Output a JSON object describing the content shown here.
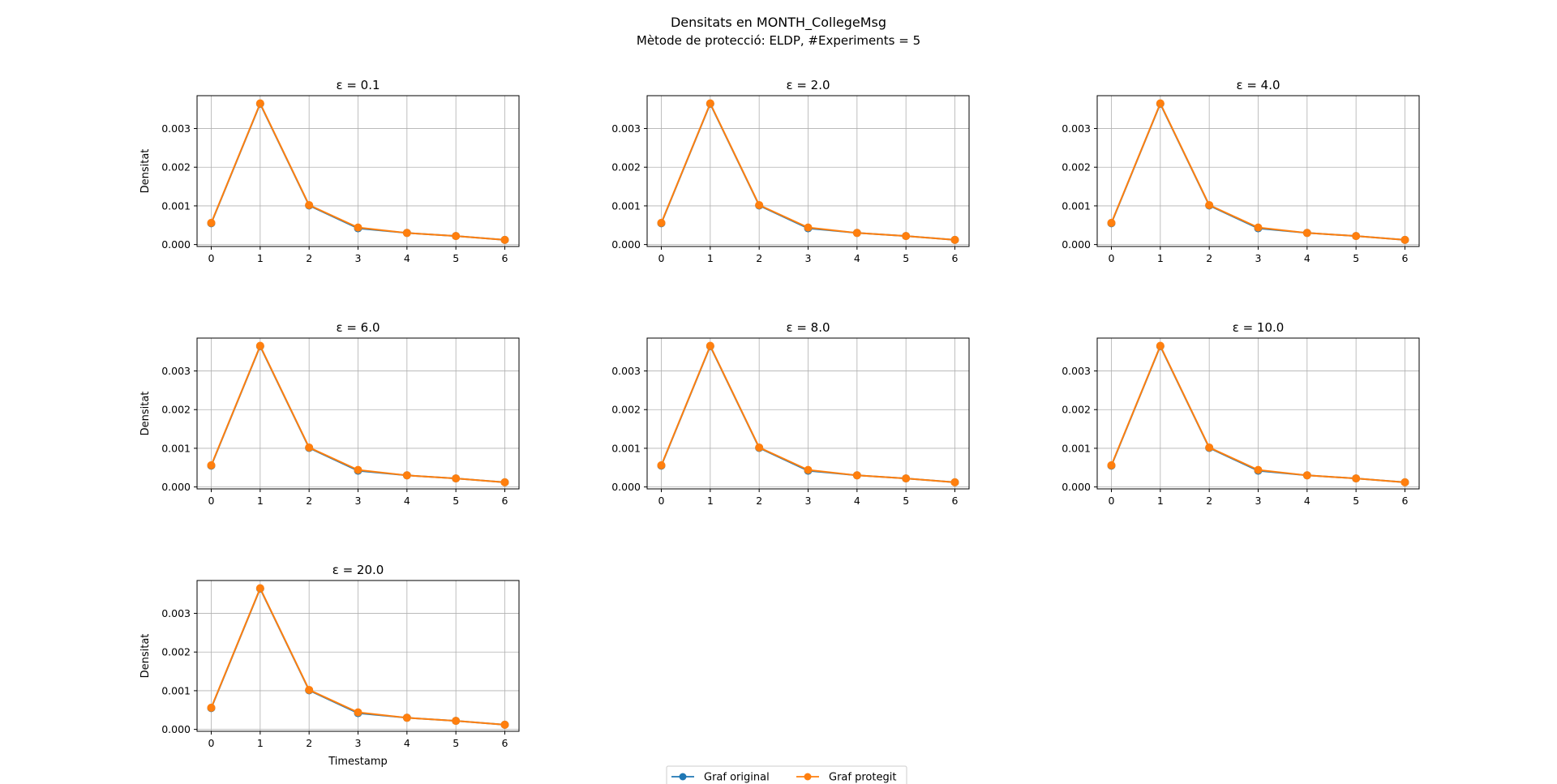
{
  "title": "Densitats en MONTH_CollegeMsg",
  "subtitle": "Mètode de protecció: ELDP, #Experiments = 5",
  "legend": {
    "placement": "bottom-center",
    "entries": [
      {
        "label": "Graf original",
        "color": "#1f77b4"
      },
      {
        "label": "Graf protegit",
        "color": "#ff7f0e"
      }
    ]
  },
  "chart_data": [
    {
      "type": "line",
      "title": "ε = 0.1",
      "ylabel": "Densitat",
      "xlabel": "",
      "x": [
        0,
        1,
        2,
        3,
        4,
        5,
        6
      ],
      "xticks": [
        "0",
        "1",
        "2",
        "3",
        "4",
        "5",
        "6"
      ],
      "yticks": [
        "0.000",
        "0.001",
        "0.002",
        "0.003"
      ],
      "ylim": [
        -5e-05,
        0.00385
      ],
      "grid": true,
      "series": [
        {
          "name": "Graf original",
          "color": "#1f77b4",
          "values": [
            0.00055,
            0.00364,
            0.00101,
            0.00042,
            0.0003,
            0.00022,
            0.00012
          ]
        },
        {
          "name": "Graf protegit",
          "color": "#ff7f0e",
          "values": [
            0.00056,
            0.00365,
            0.00102,
            0.00044,
            0.0003,
            0.00022,
            0.00012
          ]
        }
      ]
    },
    {
      "type": "line",
      "title": "ε = 2.0",
      "ylabel": "",
      "xlabel": "",
      "x": [
        0,
        1,
        2,
        3,
        4,
        5,
        6
      ],
      "xticks": [
        "0",
        "1",
        "2",
        "3",
        "4",
        "5",
        "6"
      ],
      "yticks": [
        "0.000",
        "0.001",
        "0.002",
        "0.003"
      ],
      "ylim": [
        -5e-05,
        0.00385
      ],
      "grid": true,
      "series": [
        {
          "name": "Graf original",
          "color": "#1f77b4",
          "values": [
            0.00055,
            0.00364,
            0.00101,
            0.00042,
            0.0003,
            0.00022,
            0.00012
          ]
        },
        {
          "name": "Graf protegit",
          "color": "#ff7f0e",
          "values": [
            0.00056,
            0.00365,
            0.00102,
            0.00044,
            0.0003,
            0.00022,
            0.00012
          ]
        }
      ]
    },
    {
      "type": "line",
      "title": "ε = 4.0",
      "ylabel": "",
      "xlabel": "",
      "x": [
        0,
        1,
        2,
        3,
        4,
        5,
        6
      ],
      "xticks": [
        "0",
        "1",
        "2",
        "3",
        "4",
        "5",
        "6"
      ],
      "yticks": [
        "0.000",
        "0.001",
        "0.002",
        "0.003"
      ],
      "ylim": [
        -5e-05,
        0.00385
      ],
      "grid": true,
      "series": [
        {
          "name": "Graf original",
          "color": "#1f77b4",
          "values": [
            0.00055,
            0.00364,
            0.00101,
            0.00042,
            0.0003,
            0.00022,
            0.00012
          ]
        },
        {
          "name": "Graf protegit",
          "color": "#ff7f0e",
          "values": [
            0.00056,
            0.00365,
            0.00102,
            0.00044,
            0.0003,
            0.00022,
            0.00012
          ]
        }
      ]
    },
    {
      "type": "line",
      "title": "ε = 6.0",
      "ylabel": "Densitat",
      "xlabel": "",
      "x": [
        0,
        1,
        2,
        3,
        4,
        5,
        6
      ],
      "xticks": [
        "0",
        "1",
        "2",
        "3",
        "4",
        "5",
        "6"
      ],
      "yticks": [
        "0.000",
        "0.001",
        "0.002",
        "0.003"
      ],
      "ylim": [
        -5e-05,
        0.00385
      ],
      "grid": true,
      "series": [
        {
          "name": "Graf original",
          "color": "#1f77b4",
          "values": [
            0.00055,
            0.00364,
            0.00101,
            0.00042,
            0.0003,
            0.00022,
            0.00012
          ]
        },
        {
          "name": "Graf protegit",
          "color": "#ff7f0e",
          "values": [
            0.00056,
            0.00365,
            0.00102,
            0.00044,
            0.0003,
            0.00022,
            0.00012
          ]
        }
      ]
    },
    {
      "type": "line",
      "title": "ε = 8.0",
      "ylabel": "",
      "xlabel": "",
      "x": [
        0,
        1,
        2,
        3,
        4,
        5,
        6
      ],
      "xticks": [
        "0",
        "1",
        "2",
        "3",
        "4",
        "5",
        "6"
      ],
      "yticks": [
        "0.000",
        "0.001",
        "0.002",
        "0.003"
      ],
      "ylim": [
        -5e-05,
        0.00385
      ],
      "grid": true,
      "series": [
        {
          "name": "Graf original",
          "color": "#1f77b4",
          "values": [
            0.00055,
            0.00364,
            0.00101,
            0.00042,
            0.0003,
            0.00022,
            0.00012
          ]
        },
        {
          "name": "Graf protegit",
          "color": "#ff7f0e",
          "values": [
            0.00056,
            0.00365,
            0.00102,
            0.00044,
            0.0003,
            0.00022,
            0.00012
          ]
        }
      ]
    },
    {
      "type": "line",
      "title": "ε = 10.0",
      "ylabel": "",
      "xlabel": "",
      "x": [
        0,
        1,
        2,
        3,
        4,
        5,
        6
      ],
      "xticks": [
        "0",
        "1",
        "2",
        "3",
        "4",
        "5",
        "6"
      ],
      "yticks": [
        "0.000",
        "0.001",
        "0.002",
        "0.003"
      ],
      "ylim": [
        -5e-05,
        0.00385
      ],
      "grid": true,
      "series": [
        {
          "name": "Graf original",
          "color": "#1f77b4",
          "values": [
            0.00055,
            0.00364,
            0.00101,
            0.00042,
            0.0003,
            0.00022,
            0.00012
          ]
        },
        {
          "name": "Graf protegit",
          "color": "#ff7f0e",
          "values": [
            0.00056,
            0.00365,
            0.00102,
            0.00044,
            0.0003,
            0.00022,
            0.00012
          ]
        }
      ]
    },
    {
      "type": "line",
      "title": "ε = 20.0",
      "ylabel": "Densitat",
      "xlabel": "Timestamp",
      "x": [
        0,
        1,
        2,
        3,
        4,
        5,
        6
      ],
      "xticks": [
        "0",
        "1",
        "2",
        "3",
        "4",
        "5",
        "6"
      ],
      "yticks": [
        "0.000",
        "0.001",
        "0.002",
        "0.003"
      ],
      "ylim": [
        -5e-05,
        0.00385
      ],
      "grid": true,
      "series": [
        {
          "name": "Graf original",
          "color": "#1f77b4",
          "values": [
            0.00055,
            0.00364,
            0.00101,
            0.00042,
            0.0003,
            0.00022,
            0.00012
          ]
        },
        {
          "name": "Graf protegit",
          "color": "#ff7f0e",
          "values": [
            0.00056,
            0.00365,
            0.00102,
            0.00044,
            0.0003,
            0.00022,
            0.00012
          ]
        }
      ]
    }
  ]
}
